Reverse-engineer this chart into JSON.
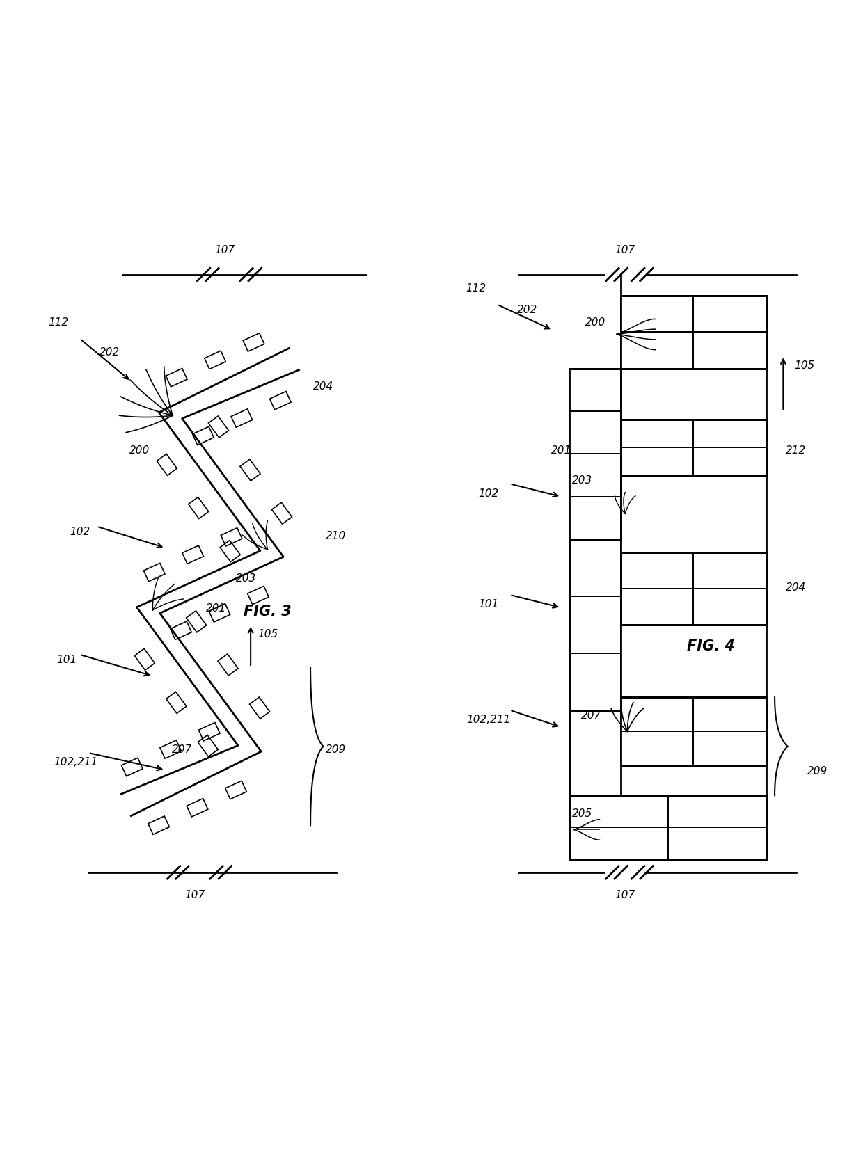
{
  "bg_color": "#ffffff",
  "line_color": "#000000",
  "fig_width": 12.4,
  "fig_height": 16.73,
  "fig3_labels": {
    "107_top": "107",
    "107_bot": "107",
    "202": "202",
    "112": "112",
    "200": "200",
    "102": "102",
    "204": "204",
    "210": "210",
    "203": "203",
    "201": "201",
    "101": "101",
    "105": "105",
    "102_211": "102,211",
    "207": "207",
    "209": "209",
    "fig_label": "FIG. 3"
  },
  "fig4_labels": {
    "107_top": "107",
    "107_bot": "107",
    "202": "202",
    "112": "112",
    "200": "200",
    "105": "105",
    "203": "203",
    "212": "212",
    "201": "201",
    "102": "102",
    "204": "204",
    "101": "101",
    "102_211": "102,211",
    "207": "207",
    "209": "209",
    "205": "205",
    "fig_label": "FIG. 4"
  }
}
